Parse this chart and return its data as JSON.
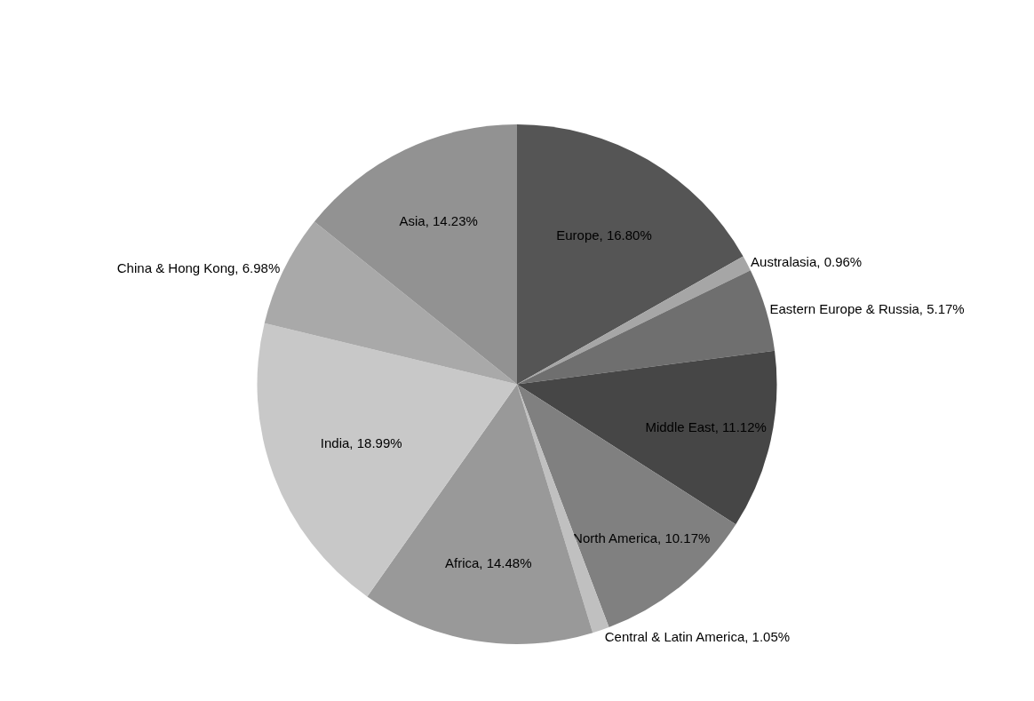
{
  "chart_data": {
    "type": "pie",
    "categories": [
      "Europe",
      "Australasia",
      "Eastern Europe & Russia",
      "Middle East",
      "North America",
      "Central & Latin America",
      "Africa",
      "India",
      "China & Hong Kong",
      "Asia"
    ],
    "values": [
      16.8,
      0.96,
      5.17,
      11.12,
      10.17,
      1.05,
      14.48,
      18.99,
      6.98,
      14.23
    ],
    "colors": [
      "#555555",
      "#a6a6a6",
      "#6f6f6f",
      "#464646",
      "#808080",
      "#c0c0c0",
      "#999999",
      "#c8c8c8",
      "#a9a9a9",
      "#929292"
    ],
    "value_labels": [
      "16.80%",
      "0.96%",
      "5.17%",
      "11.12%",
      "10.17%",
      "1.05%",
      "14.48%",
      "18.99%",
      "6.98%",
      "14.23%"
    ],
    "legend": false
  }
}
